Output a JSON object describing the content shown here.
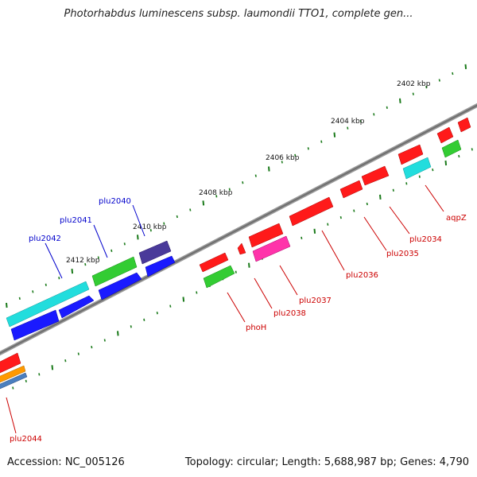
{
  "title": "Photorhabdus luminescens subsp. laumondii TTO1, complete gen...",
  "footer": {
    "accession": "Accession: NC_005126",
    "topology": "Topology: circular; Length: 5,688,987 bp; Genes: 4,790"
  },
  "kbp_labels": [
    "2402 kbp",
    "2404 kbp",
    "2406 kbp",
    "2408 kbp",
    "2410 kbp",
    "2412 kbp"
  ],
  "gene_labels": [
    "plu2040",
    "plu2041",
    "plu2042",
    "aqpZ",
    "plu2034",
    "plu2035",
    "plu2036",
    "plu2037",
    "plu2038",
    "phoH",
    "plu2044"
  ],
  "colors": {
    "backbone": "#7f7f7f",
    "tick": "#1a7a1a",
    "label_forward": "#0000cc",
    "label_reverse": "#cc0000",
    "red": "#ff1a1a",
    "green": "#33cc33",
    "blue": "#1a1aff",
    "cyan": "#22dddd",
    "purple": "#4a3a9a",
    "magenta": "#ff33aa",
    "orange": "#ff9900"
  }
}
